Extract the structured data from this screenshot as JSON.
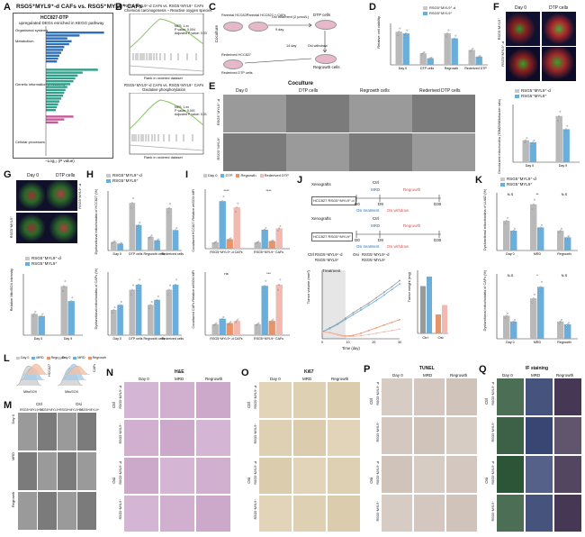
{
  "panels": {
    "A": {
      "label": "A",
      "title": "RSG5⁺MYL9⁺-d CAFs vs. RSG5⁺MYL9⁺ CAFs",
      "box_title": "HCC827-DTP",
      "box_sub": "upregulated DEGs enriched in KEGG pathway",
      "xlabel": "−Log₁₀ (P value)",
      "groups": [
        "Organismal systems",
        "Metabolism",
        "Genetic information processing",
        "Cellular processes"
      ],
      "bars_blue": [
        0.95,
        0.55,
        0.35,
        0.42,
        0.38,
        0.3,
        0.28,
        0.25,
        0.22,
        0.2,
        0.18
      ],
      "bars_teal": [
        0.85,
        0.6,
        0.52,
        0.48,
        0.45,
        0.4,
        0.35,
        0.32,
        0.3,
        0.28,
        0.25,
        0.22,
        0.2,
        0.18,
        0.16
      ],
      "bars_pink": [
        0.45,
        0.3,
        0.2
      ]
    },
    "B": {
      "label": "B",
      "gsea1": {
        "title1": "RSG5⁺MYL9⁺-d CAFs vs. RSG5⁺MYL9⁺ CAFs",
        "title2": "Chemical carcinogenesis – Reactive oxygen species",
        "nes": "NES: 1.xx",
        "pval": "P value: 0.004",
        "padj": "Adjusted P value: 0.03"
      },
      "gsea2": {
        "title1": "RSG5⁺MYL9⁺-d CAFs vs. RSG5⁺MYL9⁺ CAFs",
        "title2": "Oxidative phosphorylation",
        "nes": "NES: 1.xx",
        "pval": "P value: 0.001",
        "padj": "Adjusted P value: 0.01"
      },
      "ylabel1": "Running enrichment score",
      "ylabel2": "Ranked list metric",
      "xlabel": "Rank in ordered dataset"
    },
    "C": {
      "label": "C",
      "left": "Coculture",
      "t1": "Parental HCC827",
      "t2": "Parental HCC827 + CAFs",
      "t3": "Osi treatment (2 μmol/L)",
      "t4": "9 day",
      "t5": "DTP cells",
      "t6": "14 day",
      "t7": "Osi withdraw",
      "t8": "Rederived HCC827",
      "t9": "Rederived DTP cells",
      "t10": "Regrowth cells"
    },
    "D": {
      "label": "D",
      "legend": [
        "RSG5⁺MYL9⁺-d",
        "RSG5⁺MYL9⁺"
      ],
      "ylabel": "Relative cell viability",
      "cats": [
        "Day 0",
        "DTP cells",
        "Regrowth",
        "Rederived DTP"
      ],
      "chart_data": {
        "type": "bar",
        "categories": [
          "Day 0",
          "DTP cells",
          "Regrowth",
          "Rederived DTP"
        ],
        "series": [
          {
            "name": "RSG5⁺MYL9⁺-d",
            "values": [
              1.0,
              0.35,
              0.95,
              0.45
            ]
          },
          {
            "name": "RSG5⁺MYL9⁺",
            "values": [
              0.95,
              0.2,
              0.8,
              0.25
            ]
          }
        ]
      }
    },
    "E": {
      "label": "E",
      "title": "Coculture",
      "cols": [
        "Day 0",
        "DTP cells",
        "Regrowth cells",
        "Rederived DTP cells"
      ],
      "rows": [
        "RSG5⁺MYL9⁺-d",
        "RSG5⁺MYL9⁺"
      ]
    },
    "F": {
      "label": "F",
      "cols": [
        "Day 0",
        "DTP cells"
      ],
      "rows": [
        "RSG5⁺MYL9⁺",
        "RSG5⁺MYL9⁺-d"
      ],
      "legend": [
        "RSG5⁺MYL9⁺-d",
        "RSG5⁺MYL9⁺"
      ],
      "ylabel": "Decolorized mitochondria (TOM20/Mitotracker ratio)",
      "cats": [
        "Day 0",
        "Day 9"
      ],
      "chart_data": {
        "type": "bar",
        "categories": [
          "Day 0",
          "Day 9"
        ],
        "series": [
          {
            "name": "RSG5⁺MYL9⁺-d",
            "values": [
              1.0,
              2.1
            ]
          },
          {
            "name": "RSG5⁺MYL9⁺",
            "values": [
              0.9,
              1.5
            ]
          }
        ]
      }
    },
    "G": {
      "label": "G",
      "cols": [
        "Day 0",
        "DTP cells"
      ],
      "rows": [
        "RSG5⁺MYL9⁺-d",
        "RSG5⁺MYL9⁺"
      ],
      "legend": [
        "RSG5⁺MYL9⁺-d",
        "RSG5⁺MYL9⁺"
      ],
      "ylabel": "Relative MitoSOX intensity",
      "cats": [
        "Day 0",
        "Day 9"
      ],
      "chart_data": {
        "type": "bar",
        "categories": [
          "Day 0",
          "Day 9"
        ],
        "series": [
          {
            "name": "RSG5⁺MYL9⁺-d",
            "values": [
              1.0,
              2.3
            ]
          },
          {
            "name": "RSG5⁺MYL9⁺",
            "values": [
              0.9,
              1.6
            ]
          }
        ]
      }
    },
    "H": {
      "label": "H",
      "legend": [
        "RSG5⁺MYL9⁺-d",
        "RSG5⁺MYL9⁺"
      ],
      "ylabel1": "Dysfunctional mitochondria of HCC827 (%)",
      "ylabel2": "Dysfunctional mitochondria of CAFs (%)",
      "cats": [
        "Day 0",
        "DTP cells",
        "Regrowth cells",
        "Rederived cells"
      ],
      "chart_data": [
        {
          "type": "bar",
          "categories": [
            "Day 0",
            "DTP cells",
            "Regrowth cells",
            "Rederived cells"
          ],
          "series": [
            {
              "name": "RSG5⁺MYL9⁺-d",
              "values": [
                5,
                28,
                8,
                25
              ]
            },
            {
              "name": "RSG5⁺MYL9⁺",
              "values": [
                4,
                15,
                6,
                12
              ]
            }
          ]
        },
        {
          "type": "bar",
          "categories": [
            "Day 0",
            "DTP cells",
            "Regrowth cells",
            "Rederived cells"
          ],
          "series": [
            {
              "name": "RSG5⁺MYL9⁺-d",
              "values": [
                10,
                18,
                12,
                18
              ]
            },
            {
              "name": "RSG5⁺MYL9⁺",
              "values": [
                12,
                20,
                14,
                20
              ]
            }
          ]
        }
      ]
    },
    "I": {
      "label": "I",
      "legend": [
        "Day 0",
        "DTP",
        "Regrowth",
        "Rederived DTP"
      ],
      "ylabel1": "Cocultured HCC827 Relative mtSOX MFI",
      "ylabel2": "Cocultured CAFs Relative mtSOX MFI",
      "cats": [
        "RSG5⁺MYL9⁺-d CAFs",
        "RSG5⁺MYL9⁺ CAFs"
      ],
      "sig1": [
        "****",
        "****",
        "ns"
      ],
      "sig2": [
        "ns",
        "***",
        "***"
      ],
      "chart_data": [
        {
          "type": "bar",
          "categories": [
            "RSG5⁺MYL9⁺-d CAFs",
            "RSG5⁺MYL9⁺ CAFs"
          ],
          "series": [
            {
              "name": "Day 0",
              "values": [
                1,
                1
              ]
            },
            {
              "name": "DTP",
              "values": [
                7.5,
                3
              ]
            },
            {
              "name": "Regrowth",
              "values": [
                1.5,
                1.2
              ]
            },
            {
              "name": "Rederived DTP",
              "values": [
                6.5,
                3.2
              ]
            }
          ]
        },
        {
          "type": "bar",
          "categories": [
            "RSG5⁺MYL9⁺-d CAFs",
            "RSG5⁺MYL9⁺ CAFs"
          ],
          "series": [
            {
              "name": "Day 0",
              "values": [
                1,
                1
              ]
            },
            {
              "name": "DTP",
              "values": [
                1.5,
                4.5
              ]
            },
            {
              "name": "Regrowth",
              "values": [
                1.1,
                1.3
              ]
            },
            {
              "name": "Rederived DTP",
              "values": [
                1.3,
                4.6
              ]
            }
          ]
        }
      ]
    },
    "J": {
      "label": "J",
      "xeno": "Xenografts",
      "model1": "HCC827 RSG5⁺MYL9⁺-d",
      "model2": "HCC827 RSG5⁺MYL9⁺",
      "ctrl": "Ctrl",
      "mrd": "MRD",
      "regrowth": "Regrowth",
      "d0": "D0",
      "d9": "D9",
      "d30": "D30",
      "osi_t": "Osi treatment",
      "osi_w": "Osi withdraw",
      "treatment": "Treatment",
      "xlabel": "Time (day)",
      "ylabel": "Tumor volume (mm³)",
      "ylabel2": "Tumor weight (mg)",
      "legend": [
        "RSG5⁺MYL9⁺-d",
        "RSG5⁺MYL9⁺",
        "RSG5⁺MYL9⁺-d",
        "RSG5⁺MYL9⁺"
      ],
      "legend_groups": [
        "Ctrl",
        "Osi"
      ],
      "cats2": [
        "Ctrl",
        "Osi"
      ],
      "chart_data": {
        "type": "line",
        "x": [
          0,
          3,
          6,
          9,
          12,
          15,
          18,
          21,
          24,
          27,
          30
        ],
        "series": [
          {
            "name": "Ctrl RSG5⁺MYL9⁺-d",
            "values": [
              100,
              160,
              220,
              300,
              380,
              450,
              520,
              600,
              680,
              760,
              850
            ]
          },
          {
            "name": "Ctrl RSG5⁺MYL9⁺",
            "values": [
              100,
              150,
              210,
              280,
              350,
              420,
              490,
              560,
              640,
              720,
              800
            ]
          },
          {
            "name": "Osi RSG5⁺MYL9⁺-d",
            "values": [
              100,
              90,
              60,
              40,
              50,
              80,
              120,
              160,
              200,
              240,
              280
            ]
          },
          {
            "name": "Osi RSG5⁺MYL9⁺",
            "values": [
              100,
              85,
              55,
              30,
              35,
              45,
              60,
              80,
              100,
              120,
              140
            ]
          }
        ],
        "xlim": [
          0,
          30
        ],
        "ylim": [
          0,
          1000
        ]
      }
    },
    "K": {
      "label": "K",
      "legend": [
        "RSG5⁺MYL9⁺-d",
        "RSG5⁺MYL9⁺"
      ],
      "ylabel1": "Dysfunctional mitochondria of LUAD (%)",
      "ylabel2": "Dysfunctional mitochondria of CAFs (%)",
      "cats": [
        "Day 0",
        "MRD",
        "Regrowth"
      ],
      "sig": [
        "N.S",
        "**",
        "N.S",
        "N.S",
        "*",
        "N.S"
      ],
      "chart_data": [
        {
          "type": "bar",
          "categories": [
            "Day 0",
            "MRD",
            "Regrowth"
          ],
          "series": [
            {
              "name": "RSG5⁺MYL9⁺-d",
              "values": [
                18,
                28,
                12
              ]
            },
            {
              "name": "RSG5⁺MYL9⁺",
              "values": [
                12,
                14,
                8
              ]
            }
          ]
        },
        {
          "type": "bar",
          "categories": [
            "Day 0",
            "MRD",
            "Regrowth"
          ],
          "series": [
            {
              "name": "RSG5⁺MYL9⁺-d",
              "values": [
                8,
                14,
                6
              ]
            },
            {
              "name": "RSG5⁺MYL9⁺",
              "values": [
                6,
                18,
                5
              ]
            }
          ]
        }
      ]
    },
    "L": {
      "label": "L",
      "legend": [
        "Day 0",
        "MRD",
        "Regrowth"
      ],
      "xlabel": "MitoSOX",
      "sub1": "HCC827",
      "sub2": "CAFs"
    },
    "M": {
      "label": "M",
      "cols": [
        "Ctrl",
        "Osi"
      ],
      "subcols": [
        "RSG5⁺MYL9⁺-d",
        "RSG5⁺MYL9⁺"
      ],
      "rows": [
        "Day 0",
        "MRD",
        "Regrowth"
      ]
    },
    "N": {
      "label": "N",
      "title": "H&E",
      "cols": [
        "Day 0",
        "MRD",
        "Regrowth"
      ],
      "groups": [
        "Ctrl",
        "Osi"
      ],
      "rows": [
        "RSG5⁺MYL9⁺-d",
        "RSG5⁺MYL9⁺"
      ]
    },
    "O": {
      "label": "O",
      "title": "Ki67",
      "cols": [
        "Day 0",
        "MRD",
        "Regrowth"
      ],
      "groups": [
        "Ctrl",
        "Osi"
      ],
      "rows": [
        "RSG5⁺MYL9⁺-d",
        "RSG5⁺MYL9⁺"
      ]
    },
    "P": {
      "label": "P",
      "title": "TUNEL",
      "cols": [
        "Day 0",
        "MRD",
        "Regrowth"
      ],
      "groups": [
        "Ctrl",
        "Osi"
      ],
      "rows": [
        "RSG5⁺MYL9⁺-d",
        "RSG5⁺MYL9⁺"
      ]
    },
    "Q": {
      "label": "Q",
      "title": "IF staining",
      "cols": [
        "Day 0",
        "MRD",
        "Regrowth"
      ],
      "groups": [
        "Ctrl",
        "Osi"
      ],
      "rows": [
        "RSG5⁺MYL9⁺-d",
        "RSG5⁺MYL9⁺"
      ]
    }
  },
  "colors": {
    "grey": "#b9b9b9",
    "blue": "#6aaedb",
    "orange": "#e8946a",
    "pink": "#f1b9b0",
    "teal": "#2fa08a",
    "darkblue": "#2e6fb5"
  }
}
